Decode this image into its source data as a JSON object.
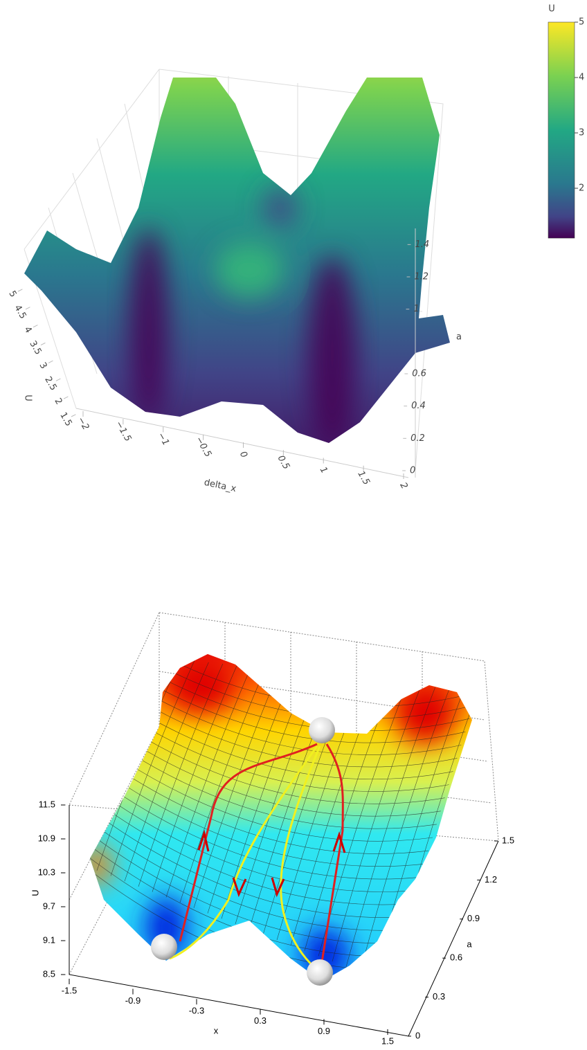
{
  "chart_data": [
    {
      "type": "surface",
      "x_label": "delta_x",
      "y_label": "a",
      "z_label": "U",
      "xlim": [
        -2,
        2
      ],
      "xticks": [
        {
          "value": -2,
          "label": "−2"
        },
        {
          "value": -1.5,
          "label": "−1.5"
        },
        {
          "value": -1,
          "label": "−1"
        },
        {
          "value": -0.5,
          "label": "−0.5"
        },
        0,
        0.5,
        1,
        1.5,
        2
      ],
      "ylim": [
        0,
        1.5
      ],
      "yticks": [
        0,
        0.2,
        0.4,
        0.6,
        1,
        1.2,
        1.4
      ],
      "zlim": [
        1.5,
        5
      ],
      "zticks": [
        1.5,
        2,
        2.5,
        3,
        3.5,
        4,
        4.5,
        5
      ],
      "colorbar": {
        "title": "U",
        "lim": [
          1.1,
          5
        ],
        "ticks": [
          2,
          3,
          4,
          5
        ]
      }
    },
    {
      "type": "surface",
      "x_label": "x",
      "y_label": "a",
      "z_label": "U",
      "xlim": [
        -1.5,
        1.5
      ],
      "xticks": [
        -1.5,
        -0.9,
        -0.3,
        0.3,
        0.9,
        1.5
      ],
      "ylim": [
        0,
        1.5
      ],
      "yticks": [
        0,
        0.3,
        0.6,
        0.9,
        1.2,
        1.5
      ],
      "zlim": [
        8.5,
        11.5
      ],
      "zticks": [
        8.5,
        9.1,
        9.7,
        10.3,
        10.9,
        11.5
      ]
    }
  ]
}
